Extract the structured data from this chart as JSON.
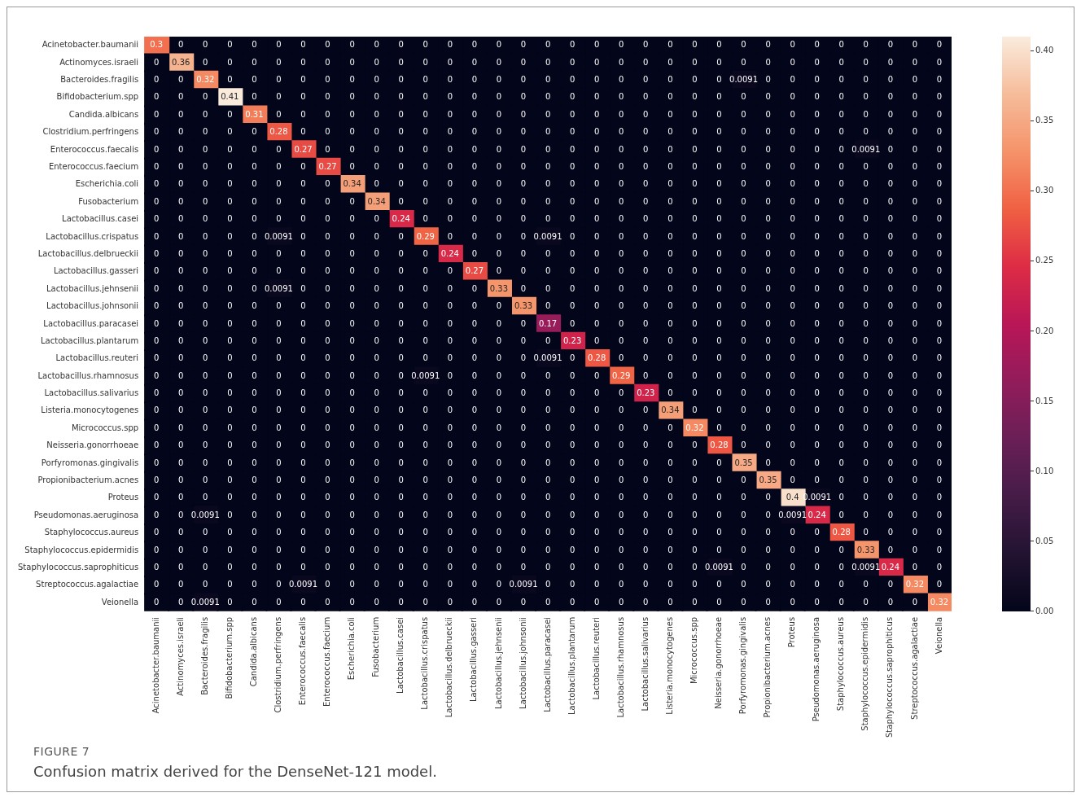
{
  "chart_data": {
    "type": "heatmap",
    "categories": [
      "Acinetobacter.baumanii",
      "Actinomyces.israeli",
      "Bacteroides.fragilis",
      "Bifidobacterium.spp",
      "Candida.albicans",
      "Clostridium.perfringens",
      "Enterococcus.faecalis",
      "Enterococcus.faecium",
      "Escherichia.coli",
      "Fusobacterium",
      "Lactobacillus.casei",
      "Lactobacillus.crispatus",
      "Lactobacillus.delbrueckii",
      "Lactobacillus.gasseri",
      "Lactobacillus.jehnsenii",
      "Lactobacillus.johnsonii",
      "Lactobacillus.paracasei",
      "Lactobacillus.plantarum",
      "Lactobacillus.reuteri",
      "Lactobacillus.rhamnosus",
      "Lactobacillus.salivarius",
      "Listeria.monocytogenes",
      "Micrococcus.spp",
      "Neisseria.gonorrhoeae",
      "Porfyromonas.gingivalis",
      "Propionibacterium.acnes",
      "Proteus",
      "Pseudomonas.aeruginosa",
      "Staphylococcus.aureus",
      "Staphylococcus.epidermidis",
      "Staphylococcus.saprophiticus",
      "Streptococcus.agalactiae",
      "Veionella"
    ],
    "y_categories": [
      "Acinetobacter.baumanii",
      "Actinomyces.israeli",
      "Bacteroides.fragilis",
      "Bifidobacterium.spp",
      "Candida.albicans",
      "Clostridium.perfringens",
      "Enterococcus.faecalis",
      "Enterococcus.faecium",
      "Escherichia.coli",
      "Fusobacterium",
      "Lactobacillus.casei",
      "Lactobacillus.crispatus",
      "Lactobacillus.delbrueckii",
      "Lactobacillus.gasseri",
      "Lactobacillus.jehnsenii",
      "Lactobacillus.johnsonii",
      "Lactobacillus.paracasei",
      "Lactobacillus.plantarum",
      "Lactobacillus.reuteri",
      "Lactobacillus.rhamnosus",
      "Lactobacillus.salivarius",
      "Listeria.monocytogenes",
      "Micrococcus.spp",
      "Neisseria.gonorrhoeae",
      "Porfyromonas.gingivalis",
      "Propionibacterium.acnes",
      "Proteus",
      "Pseudomonas.aeruginosa",
      "Staphylococcus.aureus",
      "Staphylococcus.epidermidis",
      "Staphylococcus.saprophiticus",
      "Streptococcus.agalactiae",
      "Veionella"
    ],
    "cells": [
      [
        0.3,
        0,
        0,
        0,
        0,
        0,
        0,
        0,
        0,
        0,
        0,
        0,
        0,
        0,
        0,
        0,
        0,
        0,
        0,
        0,
        0,
        0,
        0,
        0,
        0,
        0,
        0,
        0,
        0,
        0,
        0,
        0,
        0
      ],
      [
        0,
        0.36,
        0,
        0,
        0,
        0,
        0,
        0,
        0,
        0,
        0,
        0,
        0,
        0,
        0,
        0,
        0,
        0,
        0,
        0,
        0,
        0,
        0,
        0,
        0,
        0,
        0,
        0,
        0,
        0,
        0,
        0,
        0
      ],
      [
        0,
        0,
        0.32,
        0,
        0,
        0,
        0,
        0,
        0,
        0,
        0,
        0,
        0,
        0,
        0,
        0,
        0,
        0,
        0,
        0,
        0,
        0,
        0,
        0,
        0.0091,
        0,
        0,
        0,
        0,
        0,
        0,
        0,
        0
      ],
      [
        0,
        0,
        0,
        0.41,
        0,
        0,
        0,
        0,
        0,
        0,
        0,
        0,
        0,
        0,
        0,
        0,
        0,
        0,
        0,
        0,
        0,
        0,
        0,
        0,
        0,
        0,
        0,
        0,
        0,
        0,
        0,
        0,
        0
      ],
      [
        0,
        0,
        0,
        0,
        0.31,
        0,
        0,
        0,
        0,
        0,
        0,
        0,
        0,
        0,
        0,
        0,
        0,
        0,
        0,
        0,
        0,
        0,
        0,
        0,
        0,
        0,
        0,
        0,
        0,
        0,
        0,
        0,
        0
      ],
      [
        0,
        0,
        0,
        0,
        0,
        0.28,
        0,
        0,
        0,
        0,
        0,
        0,
        0,
        0,
        0,
        0,
        0,
        0,
        0,
        0,
        0,
        0,
        0,
        0,
        0,
        0,
        0,
        0,
        0,
        0,
        0,
        0,
        0
      ],
      [
        0,
        0,
        0,
        0,
        0,
        0,
        0.27,
        0,
        0,
        0,
        0,
        0,
        0,
        0,
        0,
        0,
        0,
        0,
        0,
        0,
        0,
        0,
        0,
        0,
        0,
        0,
        0,
        0,
        0,
        0.0091,
        0,
        0,
        0
      ],
      [
        0,
        0,
        0,
        0,
        0,
        0,
        0,
        0.27,
        0,
        0,
        0,
        0,
        0,
        0,
        0,
        0,
        0,
        0,
        0,
        0,
        0,
        0,
        0,
        0,
        0,
        0,
        0,
        0,
        0,
        0,
        0,
        0,
        0
      ],
      [
        0,
        0,
        0,
        0,
        0,
        0,
        0,
        0,
        0.34,
        0,
        0,
        0,
        0,
        0,
        0,
        0,
        0,
        0,
        0,
        0,
        0,
        0,
        0,
        0,
        0,
        0,
        0,
        0,
        0,
        0,
        0,
        0,
        0
      ],
      [
        0,
        0,
        0,
        0,
        0,
        0,
        0,
        0,
        0,
        0.34,
        0,
        0,
        0,
        0,
        0,
        0,
        0,
        0,
        0,
        0,
        0,
        0,
        0,
        0,
        0,
        0,
        0,
        0,
        0,
        0,
        0,
        0,
        0
      ],
      [
        0,
        0,
        0,
        0,
        0,
        0,
        0,
        0,
        0,
        0,
        0.24,
        0,
        0,
        0,
        0,
        0,
        0,
        0,
        0,
        0,
        0,
        0,
        0,
        0,
        0,
        0,
        0,
        0,
        0,
        0,
        0,
        0,
        0
      ],
      [
        0,
        0,
        0,
        0,
        0,
        0.0091,
        0,
        0,
        0,
        0,
        0,
        0.29,
        0,
        0,
        0,
        0,
        0.0091,
        0,
        0,
        0,
        0,
        0,
        0,
        0,
        0,
        0,
        0,
        0,
        0,
        0,
        0,
        0,
        0
      ],
      [
        0,
        0,
        0,
        0,
        0,
        0,
        0,
        0,
        0,
        0,
        0,
        0,
        0.24,
        0,
        0,
        0,
        0,
        0,
        0,
        0,
        0,
        0,
        0,
        0,
        0,
        0,
        0,
        0,
        0,
        0,
        0,
        0,
        0
      ],
      [
        0,
        0,
        0,
        0,
        0,
        0,
        0,
        0,
        0,
        0,
        0,
        0,
        0,
        0.27,
        0,
        0,
        0,
        0,
        0,
        0,
        0,
        0,
        0,
        0,
        0,
        0,
        0,
        0,
        0,
        0,
        0,
        0,
        0
      ],
      [
        0,
        0,
        0,
        0,
        0,
        0.0091,
        0,
        0,
        0,
        0,
        0,
        0,
        0,
        0,
        0.33,
        0,
        0,
        0,
        0,
        0,
        0,
        0,
        0,
        0,
        0,
        0,
        0,
        0,
        0,
        0,
        0,
        0,
        0
      ],
      [
        0,
        0,
        0,
        0,
        0,
        0,
        0,
        0,
        0,
        0,
        0,
        0,
        0,
        0,
        0,
        0.33,
        0,
        0,
        0,
        0,
        0,
        0,
        0,
        0,
        0,
        0,
        0,
        0,
        0,
        0,
        0,
        0,
        0
      ],
      [
        0,
        0,
        0,
        0,
        0,
        0,
        0,
        0,
        0,
        0,
        0,
        0,
        0,
        0,
        0,
        0,
        0.17,
        0,
        0,
        0,
        0,
        0,
        0,
        0,
        0,
        0,
        0,
        0,
        0,
        0,
        0,
        0,
        0
      ],
      [
        0,
        0,
        0,
        0,
        0,
        0,
        0,
        0,
        0,
        0,
        0,
        0,
        0,
        0,
        0,
        0,
        0,
        0.23,
        0,
        0,
        0,
        0,
        0,
        0,
        0,
        0,
        0,
        0,
        0,
        0,
        0,
        0,
        0
      ],
      [
        0,
        0,
        0,
        0,
        0,
        0,
        0,
        0,
        0,
        0,
        0,
        0,
        0,
        0,
        0,
        0,
        0.0091,
        0,
        0.28,
        0,
        0,
        0,
        0,
        0,
        0,
        0,
        0,
        0,
        0,
        0,
        0,
        0,
        0
      ],
      [
        0,
        0,
        0,
        0,
        0,
        0,
        0,
        0,
        0,
        0,
        0,
        0.0091,
        0,
        0,
        0,
        0,
        0,
        0,
        0,
        0.29,
        0,
        0,
        0,
        0,
        0,
        0,
        0,
        0,
        0,
        0,
        0,
        0,
        0
      ],
      [
        0,
        0,
        0,
        0,
        0,
        0,
        0,
        0,
        0,
        0,
        0,
        0,
        0,
        0,
        0,
        0,
        0,
        0,
        0,
        0,
        0.23,
        0,
        0,
        0,
        0,
        0,
        0,
        0,
        0,
        0,
        0,
        0,
        0
      ],
      [
        0,
        0,
        0,
        0,
        0,
        0,
        0,
        0,
        0,
        0,
        0,
        0,
        0,
        0,
        0,
        0,
        0,
        0,
        0,
        0,
        0,
        0.34,
        0,
        0,
        0,
        0,
        0,
        0,
        0,
        0,
        0,
        0,
        0
      ],
      [
        0,
        0,
        0,
        0,
        0,
        0,
        0,
        0,
        0,
        0,
        0,
        0,
        0,
        0,
        0,
        0,
        0,
        0,
        0,
        0,
        0,
        0,
        0.32,
        0,
        0,
        0,
        0,
        0,
        0,
        0,
        0,
        0,
        0
      ],
      [
        0,
        0,
        0,
        0,
        0,
        0,
        0,
        0,
        0,
        0,
        0,
        0,
        0,
        0,
        0,
        0,
        0,
        0,
        0,
        0,
        0,
        0,
        0,
        0.28,
        0,
        0,
        0,
        0,
        0,
        0,
        0,
        0,
        0
      ],
      [
        0,
        0,
        0,
        0,
        0,
        0,
        0,
        0,
        0,
        0,
        0,
        0,
        0,
        0,
        0,
        0,
        0,
        0,
        0,
        0,
        0,
        0,
        0,
        0,
        0.35,
        0,
        0,
        0,
        0,
        0,
        0,
        0,
        0
      ],
      [
        0,
        0,
        0,
        0,
        0,
        0,
        0,
        0,
        0,
        0,
        0,
        0,
        0,
        0,
        0,
        0,
        0,
        0,
        0,
        0,
        0,
        0,
        0,
        0,
        0,
        0.35,
        0,
        0,
        0,
        0,
        0,
        0,
        0
      ],
      [
        0,
        0,
        0,
        0,
        0,
        0,
        0,
        0,
        0,
        0,
        0,
        0,
        0,
        0,
        0,
        0,
        0,
        0,
        0,
        0,
        0,
        0,
        0,
        0,
        0,
        0,
        0.4,
        0.0091,
        0,
        0,
        0,
        0,
        0
      ],
      [
        0,
        0,
        0.0091,
        0,
        0,
        0,
        0,
        0,
        0,
        0,
        0,
        0,
        0,
        0,
        0,
        0,
        0,
        0,
        0,
        0,
        0,
        0,
        0,
        0,
        0,
        0,
        0.0091,
        0.24,
        0,
        0,
        0,
        0,
        0
      ],
      [
        0,
        0,
        0,
        0,
        0,
        0,
        0,
        0,
        0,
        0,
        0,
        0,
        0,
        0,
        0,
        0,
        0,
        0,
        0,
        0,
        0,
        0,
        0,
        0,
        0,
        0,
        0,
        0,
        0.28,
        0,
        0,
        0,
        0
      ],
      [
        0,
        0,
        0,
        0,
        0,
        0,
        0,
        0,
        0,
        0,
        0,
        0,
        0,
        0,
        0,
        0,
        0,
        0,
        0,
        0,
        0,
        0,
        0,
        0,
        0,
        0,
        0,
        0,
        0,
        0.33,
        0,
        0,
        0
      ],
      [
        0,
        0,
        0,
        0,
        0,
        0,
        0,
        0,
        0,
        0,
        0,
        0,
        0,
        0,
        0,
        0,
        0,
        0,
        0,
        0,
        0,
        0,
        0,
        0.0091,
        0,
        0,
        0,
        0,
        0,
        0.0091,
        0.24,
        0,
        0
      ],
      [
        0,
        0,
        0,
        0,
        0,
        0,
        0.0091,
        0,
        0,
        0,
        0,
        0,
        0,
        0,
        0,
        0.0091,
        0,
        0,
        0,
        0,
        0,
        0,
        0,
        0,
        0,
        0,
        0,
        0,
        0,
        0,
        0,
        0.32,
        0
      ],
      [
        0,
        0,
        0.0091,
        0,
        0,
        0,
        0,
        0,
        0,
        0,
        0,
        0,
        0,
        0,
        0,
        0,
        0,
        0,
        0,
        0,
        0,
        0,
        0,
        0,
        0,
        0,
        0,
        0,
        0,
        0,
        0,
        0,
        0.32
      ]
    ],
    "data_labels": true,
    "clim": [
      0,
      0.41
    ],
    "cticks": [
      {
        "value": 0,
        "label": "0.00"
      },
      {
        "value": 0.05,
        "label": "0.05"
      },
      {
        "value": 0.1,
        "label": "0.10"
      },
      {
        "value": 0.15,
        "label": "0.15"
      },
      {
        "value": 0.2,
        "label": "0.20"
      },
      {
        "value": 0.25,
        "label": "0.25"
      },
      {
        "value": 0.3,
        "label": "0.30"
      },
      {
        "value": 0.35,
        "label": "0.35"
      },
      {
        "value": 0.4,
        "label": "0.40"
      }
    ],
    "annotations": [
      "FIGURE 7",
      "Confusion matrix derived for the DenseNet-121 model."
    ]
  }
}
